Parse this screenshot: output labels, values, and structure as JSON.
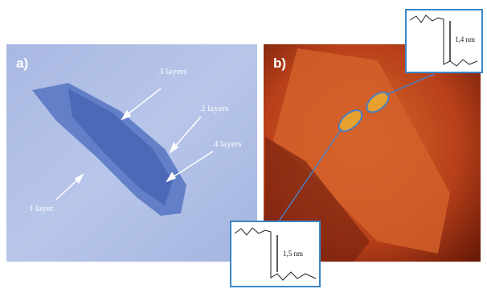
{
  "panel_a": {
    "label": "a)",
    "annotations": [
      "3 layers",
      "2 layers",
      "4 layers",
      "1 layer"
    ]
  },
  "panel_b": {
    "label": "b)",
    "insets": [
      "1,4 nm",
      "1,5 nm"
    ]
  }
}
